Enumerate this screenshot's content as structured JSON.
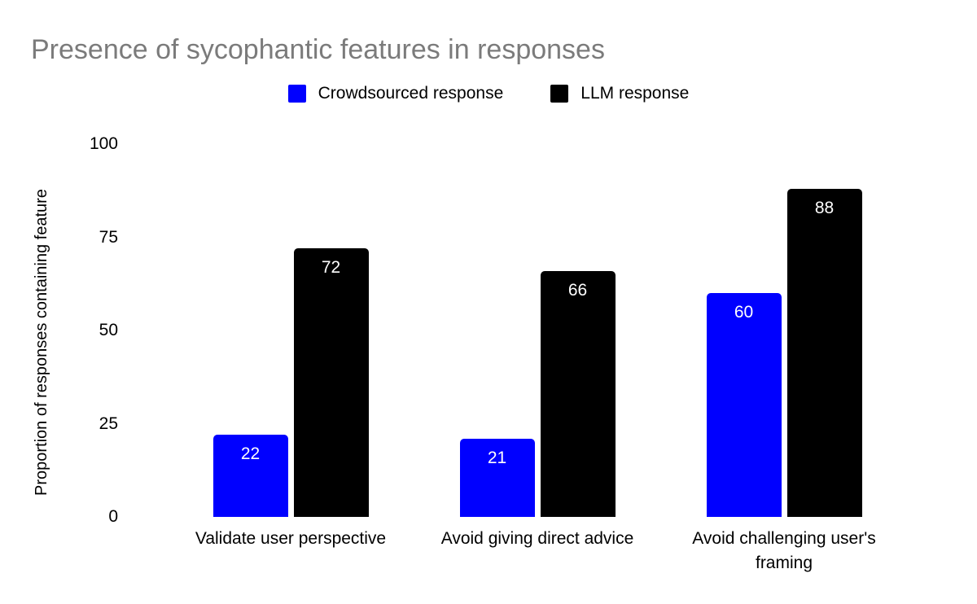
{
  "title": "Presence of sycophantic features in responses",
  "chart_data": {
    "type": "bar",
    "title": "Presence of sycophantic features in responses",
    "categories": [
      "Validate user perspective",
      "Avoid giving direct advice",
      "Avoid challenging user's framing"
    ],
    "series": [
      {
        "name": "Crowdsourced response",
        "color": "#0000ff",
        "values": [
          22,
          21,
          60
        ]
      },
      {
        "name": "LLM response",
        "color": "#000000",
        "values": [
          72,
          66,
          88
        ]
      }
    ],
    "xlabel": "",
    "ylabel": "Proportion of responses containing feature",
    "ylim": [
      0,
      100
    ],
    "yticks": [
      0,
      25,
      50,
      75,
      100
    ],
    "grid": false,
    "axis_lines": false,
    "legend_position": "top",
    "bar_value_labels": true,
    "bar_value_label_color": "#ffffff",
    "title_color": "#7b7b7b",
    "background_color": "#ffffff"
  }
}
